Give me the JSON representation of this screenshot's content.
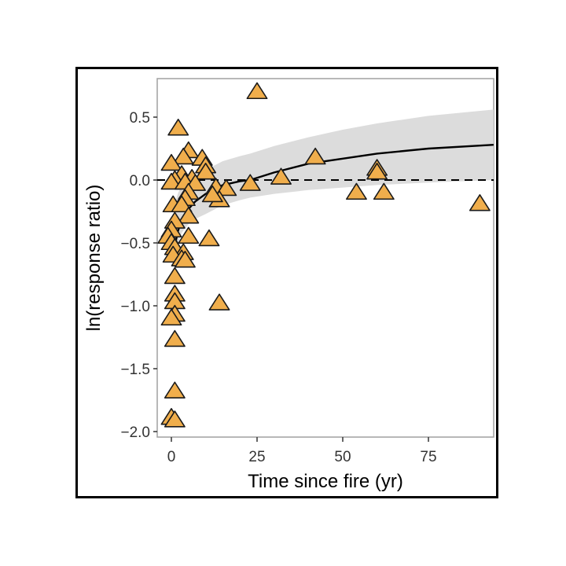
{
  "chart_data": {
    "type": "scatter",
    "title": "",
    "xlabel": "Time since fire (yr)",
    "ylabel": "ln(response ratio)",
    "xlim": [
      -4.5,
      94
    ],
    "ylim": [
      -2.05,
      0.82
    ],
    "x_ticks": [
      0,
      25,
      50,
      75
    ],
    "x_tick_labels": [
      "0",
      "25",
      "50",
      "75"
    ],
    "y_ticks": [
      0.5,
      0.0,
      -0.5,
      -1.0,
      -1.5,
      -2.0
    ],
    "y_tick_labels": [
      "0.5",
      "0.0",
      "−0.5",
      "−1.0",
      "−1.5",
      "−2.0"
    ],
    "grid": false,
    "legend": null,
    "reference_line": {
      "y": 0.0,
      "style": "dashed",
      "color": "#000000"
    },
    "marker": {
      "shape": "triangle",
      "fill": "#F0AE4C",
      "stroke": "#1a1a1a"
    },
    "colors": {
      "band": "#DCDCDC",
      "fit_line": "#000000",
      "panel_border": "#A0A0A0",
      "frame": "#000000"
    },
    "series": [
      {
        "name": "observations",
        "points": [
          {
            "x": 25,
            "y": 0.7
          },
          {
            "x": 42,
            "y": 0.18
          },
          {
            "x": 32,
            "y": 0.02
          },
          {
            "x": 23,
            "y": -0.03
          },
          {
            "x": 60,
            "y": 0.09
          },
          {
            "x": 60,
            "y": 0.06
          },
          {
            "x": 54,
            "y": -0.1
          },
          {
            "x": 62,
            "y": -0.1
          },
          {
            "x": 90,
            "y": -0.19
          },
          {
            "x": 13,
            "y": -0.06
          },
          {
            "x": 16,
            "y": -0.07
          },
          {
            "x": 14,
            "y": -0.16
          },
          {
            "x": 11,
            "y": -0.47
          },
          {
            "x": 14,
            "y": -0.98
          },
          {
            "x": 2,
            "y": 0.41
          },
          {
            "x": 5,
            "y": 0.23
          },
          {
            "x": 3.5,
            "y": 0.18
          },
          {
            "x": 0,
            "y": 0.13
          },
          {
            "x": 9,
            "y": 0.17
          },
          {
            "x": 10,
            "y": 0.11
          },
          {
            "x": 3,
            "y": 0.04
          },
          {
            "x": 10,
            "y": 0.06
          },
          {
            "x": 6,
            "y": 0.01
          },
          {
            "x": 1,
            "y": 0.0
          },
          {
            "x": 0,
            "y": -0.02
          },
          {
            "x": 4,
            "y": -0.02
          },
          {
            "x": 7,
            "y": -0.03
          },
          {
            "x": 5,
            "y": -0.1
          },
          {
            "x": 4,
            "y": -0.15
          },
          {
            "x": 12,
            "y": -0.12
          },
          {
            "x": 0.5,
            "y": -0.2
          },
          {
            "x": 3,
            "y": -0.2
          },
          {
            "x": 5,
            "y": -0.29
          },
          {
            "x": 1,
            "y": -0.33
          },
          {
            "x": 0,
            "y": -0.4
          },
          {
            "x": 5,
            "y": -0.45
          },
          {
            "x": -1,
            "y": -0.45
          },
          {
            "x": 0,
            "y": -0.5
          },
          {
            "x": 1,
            "y": -0.54
          },
          {
            "x": 3.5,
            "y": -0.58
          },
          {
            "x": 0.5,
            "y": -0.6
          },
          {
            "x": 3,
            "y": -0.63
          },
          {
            "x": 4,
            "y": -0.64
          },
          {
            "x": 1,
            "y": -0.77
          },
          {
            "x": 1,
            "y": -0.91
          },
          {
            "x": 1,
            "y": -0.97
          },
          {
            "x": 1,
            "y": -1.07
          },
          {
            "x": 0,
            "y": -1.1
          },
          {
            "x": 1,
            "y": -1.27
          },
          {
            "x": 1,
            "y": -1.68
          },
          {
            "x": 0,
            "y": -1.89
          },
          {
            "x": 1,
            "y": -1.91
          }
        ]
      },
      {
        "name": "fitted_log_curve",
        "x": [
          0.5,
          1,
          2,
          3,
          5,
          7,
          10,
          15,
          20,
          23,
          30,
          40,
          50,
          60,
          75,
          94
        ],
        "y": [
          -0.62,
          -0.52,
          -0.4,
          -0.32,
          -0.23,
          -0.17,
          -0.11,
          -0.04,
          -0.01,
          0.0,
          0.06,
          0.13,
          0.17,
          0.21,
          0.25,
          0.28
        ]
      },
      {
        "name": "confidence_band",
        "x": [
          1,
          2,
          3,
          5,
          7,
          10,
          15,
          20,
          23,
          30,
          40,
          50,
          60,
          75,
          94
        ],
        "upper": [
          -0.18,
          -0.1,
          -0.05,
          0.0,
          0.04,
          0.08,
          0.15,
          0.19,
          0.21,
          0.27,
          0.34,
          0.4,
          0.45,
          0.51,
          0.56
        ],
        "lower": [
          -0.6,
          -0.5,
          -0.42,
          -0.35,
          -0.31,
          -0.27,
          -0.2,
          -0.16,
          -0.14,
          -0.11,
          -0.08,
          -0.06,
          -0.04,
          -0.02,
          0.0
        ]
      }
    ]
  }
}
